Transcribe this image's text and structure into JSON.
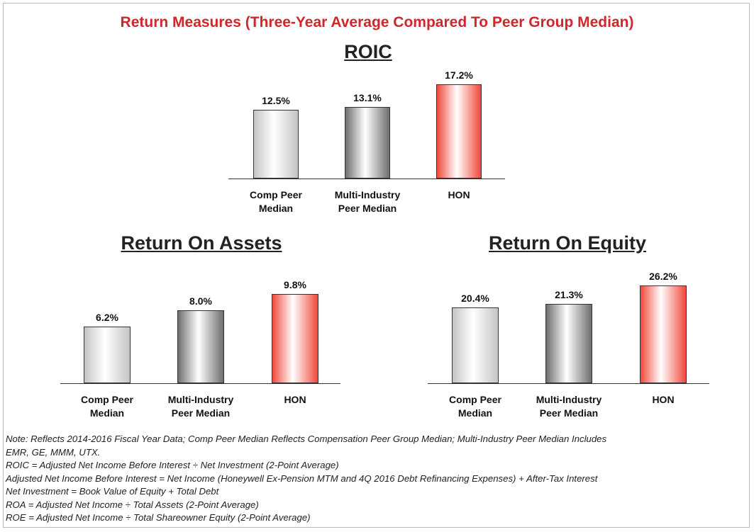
{
  "title": "Return Measures (Three-Year Average Compared To Peer Group Median)",
  "chart_data": [
    {
      "type": "bar",
      "title": "ROIC",
      "categories": [
        "Comp Peer Median",
        "Multi-Industry Peer Median",
        "HON"
      ],
      "values": [
        12.5,
        13.1,
        17.2
      ],
      "value_labels": [
        "12.5%",
        "13.1%",
        "17.2%"
      ],
      "colors": [
        "#c4c4c4",
        "#6e6e6e",
        "#f0493a"
      ]
    },
    {
      "type": "bar",
      "title": "Return On Assets",
      "categories": [
        "Comp Peer Median",
        "Multi-Industry Peer Median",
        "HON"
      ],
      "values": [
        6.2,
        8.0,
        9.8
      ],
      "value_labels": [
        "6.2%",
        "8.0%",
        "9.8%"
      ],
      "colors": [
        "#c4c4c4",
        "#6e6e6e",
        "#f0493a"
      ]
    },
    {
      "type": "bar",
      "title": "Return On Equity",
      "categories": [
        "Comp Peer Median",
        "Multi-Industry Peer Median",
        "HON"
      ],
      "values": [
        20.4,
        21.3,
        26.2
      ],
      "value_labels": [
        "20.4%",
        "21.3%",
        "26.2%"
      ],
      "colors": [
        "#c4c4c4",
        "#6e6e6e",
        "#f0493a"
      ]
    }
  ],
  "notes": [
    "Note: Reflects 2014-2016 Fiscal Year Data; Comp Peer Median Reflects Compensation Peer Group Median; Multi-Industry Peer Median Includes",
    "EMR, GE, MMM, UTX.",
    "ROIC = Adjusted Net Income Before Interest ÷ Net Investment (2-Point Average)",
    "Adjusted Net Income Before Interest = Net Income (Honeywell Ex-Pension MTM and 4Q 2016 Debt Refinancing Expenses) + After-Tax Interest",
    "Net Investment = Book Value of Equity + Total Debt",
    "ROA = Adjusted Net Income ÷ Total Assets (2-Point Average)",
    "ROE = Adjusted Net Income ÷ Total Shareowner Equity (2-Point Average)"
  ]
}
